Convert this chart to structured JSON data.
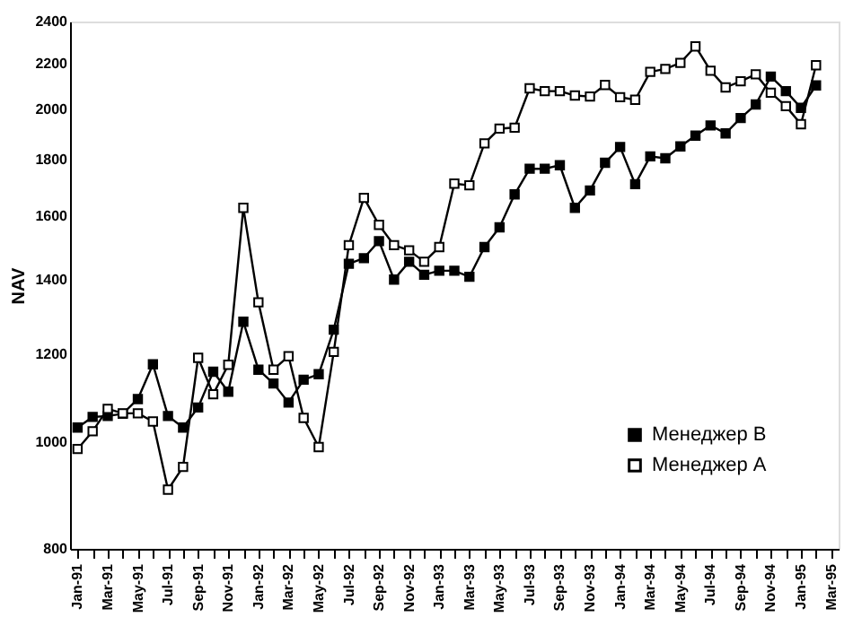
{
  "chart_data": {
    "type": "line",
    "ylabel": "NAV",
    "categories": [
      "Jan-91",
      null,
      "Mar-91",
      null,
      "May-91",
      null,
      "Jul-91",
      null,
      "Sep-91",
      null,
      "Nov-91",
      null,
      "Jan-92",
      null,
      "Mar-92",
      null,
      "May-92",
      null,
      "Jul-92",
      null,
      "Sep-92",
      null,
      "Nov-92",
      null,
      "Jan-93",
      null,
      "Mar-93",
      null,
      "May-93",
      null,
      "Jul-93",
      null,
      "Sep-93",
      null,
      "Nov-93",
      null,
      "Jan-94",
      null,
      "Mar-94",
      null,
      "May-94",
      null,
      "Jul-94",
      null,
      "Sep-94",
      null,
      "Nov-94",
      null,
      "Jan-95",
      null,
      "Mar-95"
    ],
    "series": [
      {
        "name": "Менеджер B",
        "color": "#000000",
        "values": [
          1030,
          1053,
          1055,
          1060,
          1093,
          1175,
          1055,
          1030,
          1074,
          1157,
          1110,
          1284,
          1162,
          1129,
          1085,
          1138,
          1151,
          1263,
          1449,
          1466,
          1519,
          1402,
          1455,
          1416,
          1428,
          1428,
          1410,
          1500,
          1563,
          1674,
          1766,
          1766,
          1779,
          1628,
          1688,
          1788,
          1848,
          1710,
          1812,
          1805,
          1850,
          1892,
          1933,
          1901,
          1963,
          2019,
          2140,
          2076,
          2005,
          2101,
          null
        ]
      },
      {
        "name": "Менеджер A",
        "color": "#000000",
        "values": [
          985,
          1022,
          1071,
          1061,
          1061,
          1043,
          905,
          949,
          1191,
          1104,
          1174,
          1628,
          1337,
          1162,
          1195,
          1051,
          989,
          1206,
          1506,
          1662,
          1571,
          1506,
          1490,
          1455,
          1500,
          1712,
          1706,
          1862,
          1920,
          1924,
          2088,
          2076,
          2076,
          2057,
          2053,
          2103,
          2050,
          2039,
          2161,
          2174,
          2202,
          2279,
          2166,
          2092,
          2119,
          2150,
          2069,
          2012,
          1938,
          2191,
          null
        ]
      }
    ],
    "ylim": [
      800,
      2400
    ],
    "yticks": [
      800,
      1000,
      1200,
      1400,
      1600,
      1800,
      2000,
      2200,
      2400
    ],
    "log": "y",
    "grid": false,
    "legend": "bottom right",
    "marker": "square",
    "line_style": "solid"
  }
}
